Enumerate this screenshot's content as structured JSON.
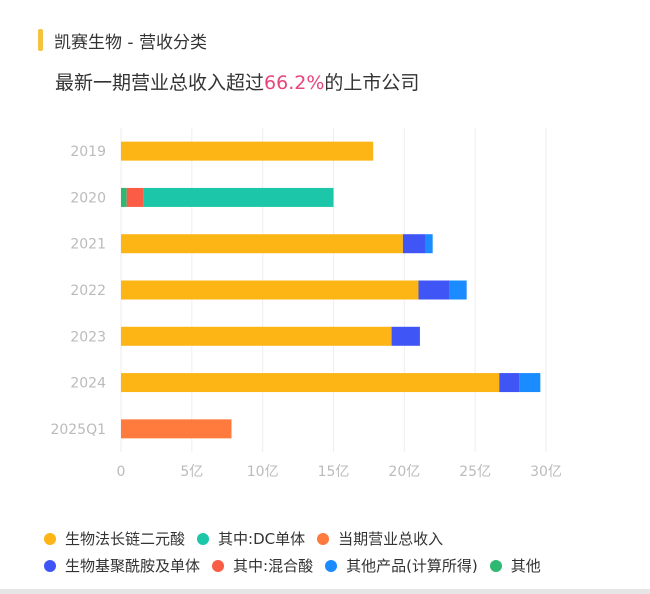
{
  "header": {
    "title": "凯赛生物 - 营收分类",
    "accent": "#F5C342"
  },
  "subtitle": {
    "prefix": "最新一期营业总收入超过",
    "highlight": "66.2%",
    "suffix": "的上市公司",
    "highlight_color": "#E8457A"
  },
  "chart_data": {
    "type": "bar",
    "orientation": "horizontal",
    "stacked": true,
    "categories": [
      "2019",
      "2020",
      "2021",
      "2022",
      "2023",
      "2024",
      "2025Q1"
    ],
    "xlim": [
      0,
      30
    ],
    "x_ticks": [
      "0",
      "5亿",
      "10亿",
      "15亿",
      "20亿",
      "25亿",
      "30亿"
    ],
    "x_tick_values": [
      0,
      5,
      10,
      15,
      20,
      25,
      30
    ],
    "unit": "亿",
    "grid": "vertical",
    "legend_position": "bottom",
    "series": [
      {
        "name": "生物法长链二元酸",
        "color": "#FDB515",
        "values": [
          17.8,
          null,
          19.9,
          21.0,
          19.1,
          26.7,
          null
        ]
      },
      {
        "name": "其中:DC单体",
        "color": "#1CC6A8",
        "values": [
          null,
          13.4,
          null,
          null,
          null,
          null,
          null
        ]
      },
      {
        "name": "当期营业总收入",
        "color": "#FF7A3D",
        "values": [
          null,
          null,
          null,
          null,
          null,
          null,
          7.8
        ]
      },
      {
        "name": "生物基聚酰胺及单体",
        "color": "#4055F5",
        "values": [
          null,
          null,
          1.6,
          2.2,
          2.0,
          1.4,
          null
        ]
      },
      {
        "name": "其中:混合酸",
        "color": "#FA5C45",
        "values": [
          null,
          1.2,
          null,
          null,
          null,
          null,
          null
        ]
      },
      {
        "name": "其他产品(计算所得)",
        "color": "#1A8CFF",
        "values": [
          null,
          null,
          0.5,
          1.2,
          null,
          1.5,
          null
        ]
      },
      {
        "name": "其他",
        "color": "#2EB872",
        "values": [
          null,
          0.4,
          null,
          null,
          null,
          null,
          null
        ]
      }
    ]
  }
}
